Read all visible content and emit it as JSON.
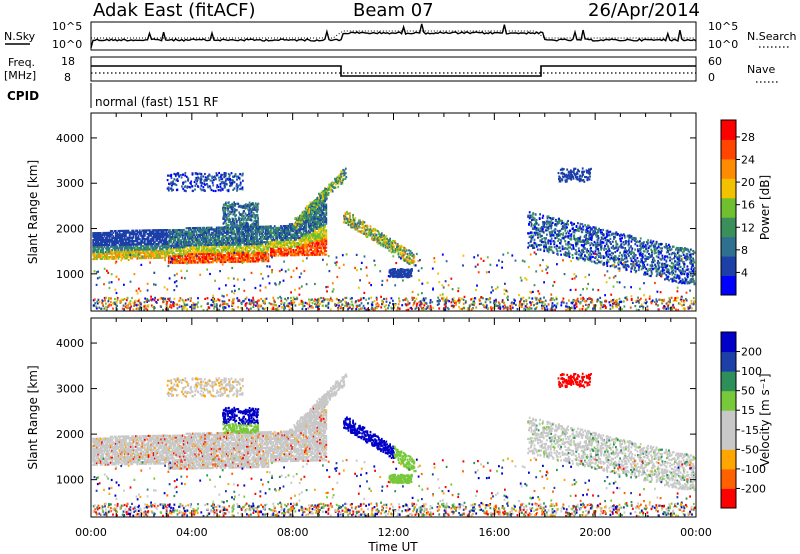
{
  "header": {
    "station": "Adak East (fitACF)",
    "beam": "Beam 07",
    "date": "26/Apr/2014",
    "cpid_value": "normal (fast) 151 RF"
  },
  "noise_panel": {
    "left_label": "N.Sky",
    "right_label": "N.Search",
    "left_ticks": [
      "10^5",
      "10^0"
    ],
    "right_ticks": [
      "10^5",
      "10^0"
    ]
  },
  "freq_panel": {
    "left_label_1": "Freq.",
    "left_label_2": "[MHz]",
    "right_label": "Nave",
    "cpid_label": "CPID",
    "left_ticks": [
      "18",
      "8"
    ],
    "right_ticks": [
      "60",
      "0"
    ]
  },
  "colors": {
    "power": [
      "#0000ff",
      "#1c3fa8",
      "#2f6f8f",
      "#3a8f5a",
      "#6fbf2f",
      "#f2c200",
      "#ff8c00",
      "#ff4500",
      "#ff0000"
    ],
    "velocity": [
      "#ff0000",
      "#ff6000",
      "#ffa500",
      "#c8c8c8",
      "#c8c8c8",
      "#77c83a",
      "#2f8f5a",
      "#1c3fa8",
      "#0000c8"
    ]
  },
  "chart_data": [
    {
      "type": "heatmap",
      "title": "Power",
      "xlabel": "Time UT",
      "ylabel": "Slant Range [km]",
      "xlim": [
        0,
        24
      ],
      "ylim": [
        180,
        4550
      ],
      "x_ticks": [
        "00:00",
        "04:00",
        "08:00",
        "12:00",
        "16:00",
        "20:00",
        "00:00"
      ],
      "y_ticks": [
        1000,
        2000,
        3000,
        4000
      ],
      "colorbar": {
        "label": "Power [dB]",
        "ticks": [
          4,
          8,
          12,
          16,
          20,
          24,
          28
        ],
        "range": [
          0,
          31
        ]
      }
    },
    {
      "type": "heatmap",
      "title": "Velocity",
      "xlabel": "Time UT",
      "ylabel": "Slant Range [km]",
      "xlim": [
        0,
        24
      ],
      "ylim": [
        180,
        4550
      ],
      "x_ticks": [
        "00:00",
        "04:00",
        "08:00",
        "12:00",
        "16:00",
        "20:00",
        "00:00"
      ],
      "y_ticks": [
        1000,
        2000,
        3000,
        4000
      ],
      "colorbar": {
        "label": "Velocity [m s^-1]",
        "ticks": [
          "200",
          "100",
          "50",
          "15",
          "-15",
          "-50",
          "-100",
          "-200"
        ]
      }
    }
  ]
}
